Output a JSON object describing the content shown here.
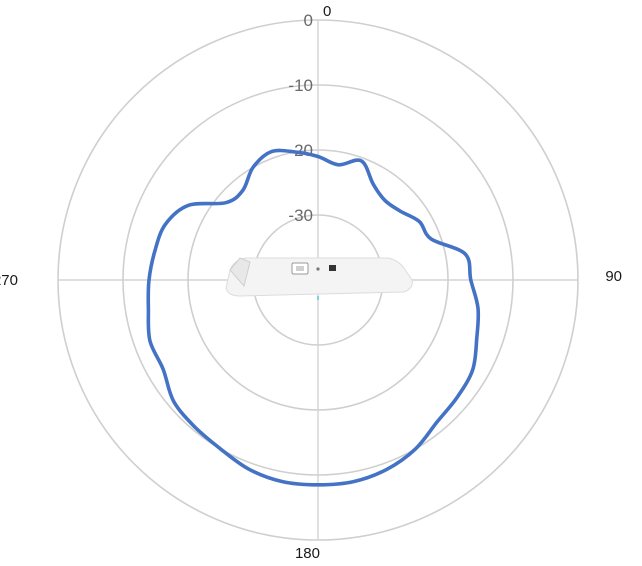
{
  "chart_data": {
    "type": "line",
    "projection": "polar",
    "title": "",
    "angle_ticks": [
      {
        "angle": 0,
        "label": "0"
      },
      {
        "angle": 90,
        "label": "90"
      },
      {
        "angle": 180,
        "label": "180"
      },
      {
        "angle": 270,
        "label": "270"
      }
    ],
    "radial_ticks": [
      {
        "value": 0,
        "label": "0"
      },
      {
        "value": -10,
        "label": "-10"
      },
      {
        "value": -20,
        "label": "-20"
      },
      {
        "value": -30,
        "label": "-30"
      }
    ],
    "radial_range": [
      -40,
      0
    ],
    "grid": true,
    "image": "ceiling-mount access point device",
    "series": [
      {
        "color": "#4472c4",
        "points": [
          {
            "angle": 0,
            "value": -21
          },
          {
            "angle": 10,
            "value": -22
          },
          {
            "angle": 20,
            "value": -20.5
          },
          {
            "angle": 30,
            "value": -23
          },
          {
            "angle": 40,
            "value": -24
          },
          {
            "angle": 50,
            "value": -23.5
          },
          {
            "angle": 60,
            "value": -22
          },
          {
            "angle": 70,
            "value": -21.5
          },
          {
            "angle": 80,
            "value": -17
          },
          {
            "angle": 90,
            "value": -16.5
          },
          {
            "angle": 100,
            "value": -15
          },
          {
            "angle": 110,
            "value": -14
          },
          {
            "angle": 120,
            "value": -12.5
          },
          {
            "angle": 130,
            "value": -12
          },
          {
            "angle": 140,
            "value": -11.5
          },
          {
            "angle": 150,
            "value": -10
          },
          {
            "angle": 160,
            "value": -9
          },
          {
            "angle": 170,
            "value": -8.5
          },
          {
            "angle": 180,
            "value": -8.5
          },
          {
            "angle": 190,
            "value": -8.5
          },
          {
            "angle": 200,
            "value": -9
          },
          {
            "angle": 210,
            "value": -10
          },
          {
            "angle": 220,
            "value": -10.5
          },
          {
            "angle": 230,
            "value": -11
          },
          {
            "angle": 240,
            "value": -12.5
          },
          {
            "angle": 250,
            "value": -12.5
          },
          {
            "angle": 260,
            "value": -13.5
          },
          {
            "angle": 270,
            "value": -14
          },
          {
            "angle": 280,
            "value": -14.5
          },
          {
            "angle": 290,
            "value": -15
          },
          {
            "angle": 300,
            "value": -17
          },
          {
            "angle": 310,
            "value": -21.5
          },
          {
            "angle": 320,
            "value": -22
          },
          {
            "angle": 330,
            "value": -20
          },
          {
            "angle": 340,
            "value": -19
          },
          {
            "angle": 350,
            "value": -20
          },
          {
            "angle": 360,
            "value": -21
          }
        ]
      }
    ]
  }
}
